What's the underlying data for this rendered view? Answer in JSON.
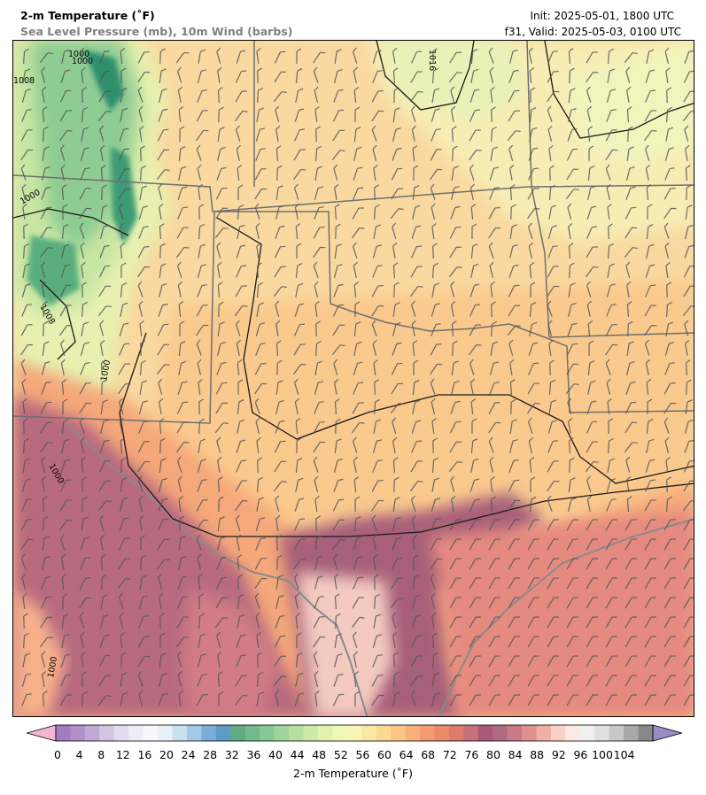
{
  "header": {
    "title": "2-m Temperature (˚F)",
    "subtitle": "Sea Level Pressure (mb), 10m Wind (barbs)",
    "init": "Init: 2025-05-01, 1800 UTC",
    "valid": "f31, Valid: 2025-05-03, 0100 UTC"
  },
  "isobar_labels": [
    "1000",
    "1000",
    "1008",
    "1016",
    "1000",
    "1008",
    "1000",
    "1000",
    "1000"
  ],
  "colorbar": {
    "label": "2-m Temperature (˚F)",
    "ticks": [
      "0",
      "4",
      "8",
      "12",
      "16",
      "20",
      "24",
      "28",
      "32",
      "36",
      "40",
      "44",
      "48",
      "52",
      "56",
      "60",
      "64",
      "68",
      "72",
      "76",
      "80",
      "84",
      "88",
      "92",
      "96",
      "100",
      "104"
    ],
    "colors": [
      "#a07cc0",
      "#b190c8",
      "#c2a8d4",
      "#d3c4e3",
      "#e4dcee",
      "#f0ecf6",
      "#f8f8fc",
      "#e8f0f8",
      "#c9e0f1",
      "#a3c9e6",
      "#7aaed8",
      "#5d9bc9",
      "#61aa84",
      "#72ba8e",
      "#86c796",
      "#a0d49c",
      "#b7e0a0",
      "#cfeaa6",
      "#e2f1ad",
      "#eef6b8",
      "#f8f3b6",
      "#fbe7a5",
      "#fbd893",
      "#fac585",
      "#f8b07b",
      "#f49a71",
      "#ec8a6c",
      "#e07a70",
      "#c6707e",
      "#a85a7a",
      "#b06a82",
      "#c87a86",
      "#e0908e",
      "#f0b0a4",
      "#f8d2c6",
      "#fbeae4",
      "#f0f0f0",
      "#e0e0e0",
      "#c8c8c8",
      "#a8a8a8",
      "#888888"
    ],
    "under_color": "#f2b5d4",
    "over_color": "#9c8cc4"
  }
}
